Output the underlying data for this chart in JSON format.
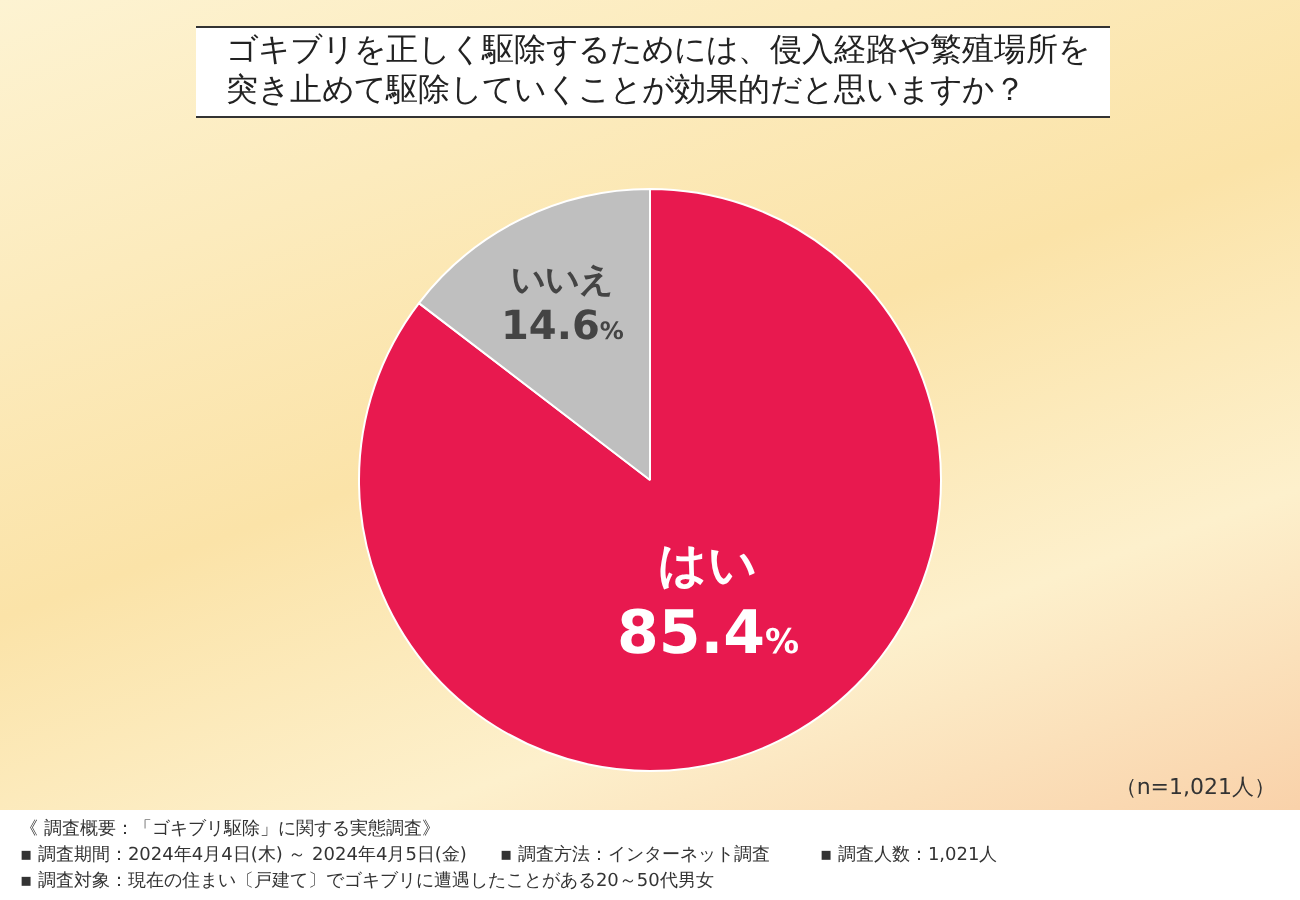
{
  "chart_data": {
    "type": "pie",
    "title": "ゴキブリを正しく駆除するためには、侵入経路や繁殖場所を突き止めて駆除していくことが効果的だと思いますか？",
    "categories": [
      "はい",
      "いいえ"
    ],
    "values": [
      85.4,
      14.6
    ],
    "value_labels": [
      "85.4%",
      "14.6%"
    ],
    "colors": [
      "#e8194f",
      "#bfbfbf"
    ],
    "legend": false,
    "annotations": [
      "（n=1,021人）",
      "《 調査概要：「ゴキブリ駆除」に関する実態調査》",
      "▪ 調査期間：2024年4月4日(木) ～ 2024年4月5日(金)",
      "▪ 調査方法：インターネット調査",
      "▪ 調査人数：1,021人",
      "▪ 調査対象：現在の住まい〔戸建て〕でゴキブリに遭遇したことがある20～50代男女"
    ]
  }
}
